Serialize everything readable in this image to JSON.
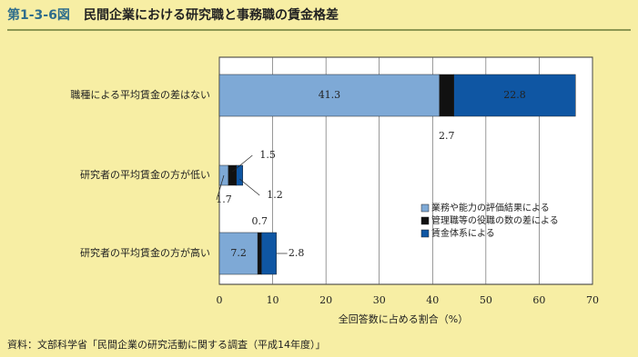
{
  "chart_data": {
    "type": "stacked-bar-horizontal",
    "figure_label": "第1-3-6図",
    "title": "民間企業における研究職と事務職の賃金格差",
    "categories": [
      "職種による平均賃金の差はない",
      "研究者の平均賃金の方が低い",
      "研究者の平均賃金の方が高い"
    ],
    "series": [
      {
        "name": "業務や能力の評価結果による",
        "color": "#7ea9d6",
        "values": [
          41.3,
          1.7,
          7.2
        ]
      },
      {
        "name": "管理職等の役職の数の差による",
        "color": "#111111",
        "values": [
          2.7,
          1.5,
          0.7
        ]
      },
      {
        "name": "賃金体系による",
        "color": "#0f56a3",
        "values": [
          22.8,
          1.2,
          2.8
        ]
      }
    ],
    "xlim": [
      0,
      70
    ],
    "xticks": [
      0,
      10,
      20,
      30,
      40,
      50,
      60,
      70
    ],
    "grid": true,
    "xlabel": "全回答数に占める割合（%）",
    "source": "資料：文部科学省「民間企業の研究活動に関する調査（平成14年度）」"
  }
}
